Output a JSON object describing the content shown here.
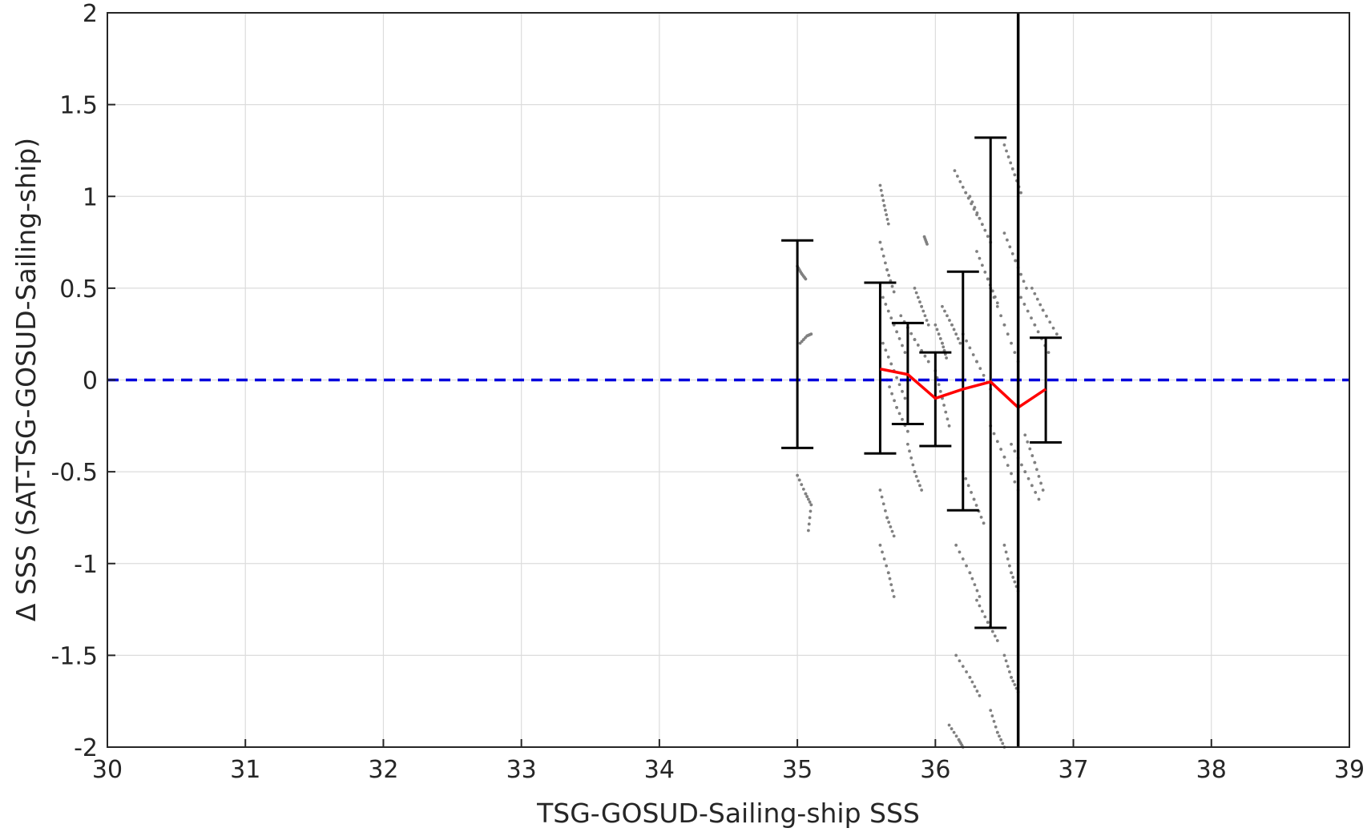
{
  "chart_data": {
    "type": "scatter",
    "title": "",
    "xlabel": "TSG-GOSUD-Sailing-ship SSS",
    "ylabel": "Δ SSS (SAT-TSG-GOSUD-Sailing-ship)",
    "xlim": [
      30,
      39
    ],
    "ylim": [
      -2,
      2
    ],
    "xticks": [
      "30",
      "31",
      "32",
      "33",
      "34",
      "35",
      "36",
      "37",
      "38",
      "39"
    ],
    "yticks": [
      "-2",
      "-1.5",
      "-1",
      "-0.5",
      "0",
      "0.5",
      "1",
      "1.5",
      "2"
    ],
    "grid": true,
    "legend": "none",
    "colors": {
      "scatter": "#808080",
      "mean_line": "#ff0000",
      "error_bars": "#000000",
      "zero_line": "#0000dd",
      "vertical_line": "#000000",
      "grid": "#dcdcdc"
    },
    "zero_line": {
      "y": 0,
      "style": "dashed"
    },
    "vertical_line": {
      "x": 36.6
    },
    "mean_line": {
      "x": [
        35.6,
        35.8,
        36.0,
        36.2,
        36.4,
        36.6,
        36.8
      ],
      "y": [
        0.06,
        0.03,
        -0.1,
        -0.05,
        -0.01,
        -0.15,
        -0.05
      ]
    },
    "error_bars": [
      {
        "x": 35.0,
        "low": -0.37,
        "high": 0.76
      },
      {
        "x": 35.6,
        "low": -0.4,
        "high": 0.53
      },
      {
        "x": 35.8,
        "low": -0.24,
        "high": 0.31
      },
      {
        "x": 36.0,
        "low": -0.36,
        "high": 0.15
      },
      {
        "x": 36.2,
        "low": -0.71,
        "high": 0.59
      },
      {
        "x": 36.4,
        "low": -1.35,
        "high": 1.32
      },
      {
        "x": 36.8,
        "low": -0.34,
        "high": 0.23
      }
    ],
    "scatter_tracks": [
      [
        [
          35.0,
          0.62
        ],
        [
          35.03,
          0.58
        ],
        [
          35.06,
          0.55
        ]
      ],
      [
        [
          35.02,
          0.2
        ],
        [
          35.07,
          0.24
        ],
        [
          35.1,
          0.25
        ]
      ],
      [
        [
          35.0,
          -0.52
        ],
        [
          35.06,
          -0.62
        ],
        [
          35.1,
          -0.68
        ],
        [
          35.08,
          -0.82
        ]
      ],
      [
        [
          35.6,
          1.06
        ],
        [
          35.63,
          0.95
        ],
        [
          35.66,
          0.85
        ]
      ],
      [
        [
          35.6,
          0.75
        ],
        [
          35.65,
          0.6
        ],
        [
          35.7,
          0.48
        ]
      ],
      [
        [
          35.62,
          0.45
        ],
        [
          35.7,
          0.3
        ],
        [
          35.78,
          0.15
        ]
      ],
      [
        [
          35.62,
          0.2
        ],
        [
          35.7,
          0.05
        ],
        [
          35.78,
          -0.1
        ]
      ],
      [
        [
          35.65,
          0.0
        ],
        [
          35.72,
          -0.15
        ],
        [
          35.8,
          -0.28
        ]
      ],
      [
        [
          35.6,
          -0.6
        ],
        [
          35.65,
          -0.75
        ],
        [
          35.7,
          -0.85
        ]
      ],
      [
        [
          35.6,
          -0.9
        ],
        [
          35.66,
          -1.05
        ],
        [
          35.7,
          -1.18
        ]
      ],
      [
        [
          35.75,
          0.35
        ],
        [
          35.85,
          0.22
        ],
        [
          35.95,
          0.1
        ]
      ],
      [
        [
          35.8,
          -0.35
        ],
        [
          35.85,
          -0.5
        ],
        [
          35.9,
          -0.6
        ]
      ],
      [
        [
          35.85,
          0.5
        ],
        [
          35.9,
          0.4
        ],
        [
          35.95,
          0.3
        ]
      ],
      [
        [
          35.92,
          0.78
        ],
        [
          35.94,
          0.74
        ]
      ],
      [
        [
          36.0,
          0.05
        ],
        [
          36.05,
          -0.1
        ],
        [
          36.1,
          -0.25
        ]
      ],
      [
        [
          36.05,
          0.4
        ],
        [
          36.12,
          0.3
        ],
        [
          36.18,
          0.2
        ]
      ],
      [
        [
          36.14,
          1.14
        ],
        [
          36.22,
          1.02
        ],
        [
          36.3,
          0.9
        ]
      ],
      [
        [
          36.25,
          1.0
        ],
        [
          36.32,
          0.88
        ],
        [
          36.4,
          0.75
        ]
      ],
      [
        [
          36.3,
          0.7
        ],
        [
          36.38,
          0.55
        ],
        [
          36.45,
          0.42
        ]
      ],
      [
        [
          36.2,
          0.25
        ],
        [
          36.3,
          0.1
        ],
        [
          36.4,
          -0.05
        ]
      ],
      [
        [
          36.4,
          0.5
        ],
        [
          36.5,
          0.3
        ],
        [
          36.6,
          0.1
        ]
      ],
      [
        [
          36.5,
          1.28
        ],
        [
          36.56,
          1.15
        ],
        [
          36.62,
          1.02
        ]
      ],
      [
        [
          36.5,
          0.8
        ],
        [
          36.58,
          0.65
        ],
        [
          36.66,
          0.5
        ]
      ],
      [
        [
          36.62,
          0.45
        ],
        [
          36.72,
          0.3
        ],
        [
          36.82,
          0.15
        ]
      ],
      [
        [
          36.7,
          0.5
        ],
        [
          36.78,
          0.38
        ],
        [
          36.88,
          0.25
        ]
      ],
      [
        [
          36.4,
          -0.25
        ],
        [
          36.5,
          -0.42
        ],
        [
          36.6,
          -0.6
        ]
      ],
      [
        [
          36.55,
          -0.35
        ],
        [
          36.65,
          -0.5
        ],
        [
          36.75,
          -0.65
        ]
      ],
      [
        [
          36.2,
          -0.5
        ],
        [
          36.28,
          -0.65
        ],
        [
          36.35,
          -0.78
        ]
      ],
      [
        [
          36.15,
          -0.9
        ],
        [
          36.25,
          -1.05
        ],
        [
          36.32,
          -1.18
        ]
      ],
      [
        [
          36.3,
          -1.2
        ],
        [
          36.38,
          -1.32
        ],
        [
          36.45,
          -1.42
        ]
      ],
      [
        [
          36.15,
          -1.5
        ],
        [
          36.25,
          -1.62
        ],
        [
          36.32,
          -1.72
        ]
      ],
      [
        [
          36.1,
          -1.88
        ],
        [
          36.17,
          -1.96
        ],
        [
          36.2,
          -2.0
        ]
      ],
      [
        [
          36.5,
          -1.5
        ],
        [
          36.55,
          -1.62
        ],
        [
          36.6,
          -1.7
        ]
      ],
      [
        [
          36.5,
          -0.9
        ],
        [
          36.55,
          -1.05
        ],
        [
          36.6,
          -1.15
        ]
      ],
      [
        [
          36.4,
          -1.8
        ],
        [
          36.45,
          -1.92
        ],
        [
          36.5,
          -2.0
        ]
      ],
      [
        [
          36.0,
          0.3
        ],
        [
          36.05,
          0.2
        ],
        [
          36.08,
          0.12
        ]
      ],
      [
        [
          36.65,
          -0.3
        ],
        [
          36.72,
          -0.45
        ],
        [
          36.78,
          -0.6
        ]
      ]
    ]
  }
}
